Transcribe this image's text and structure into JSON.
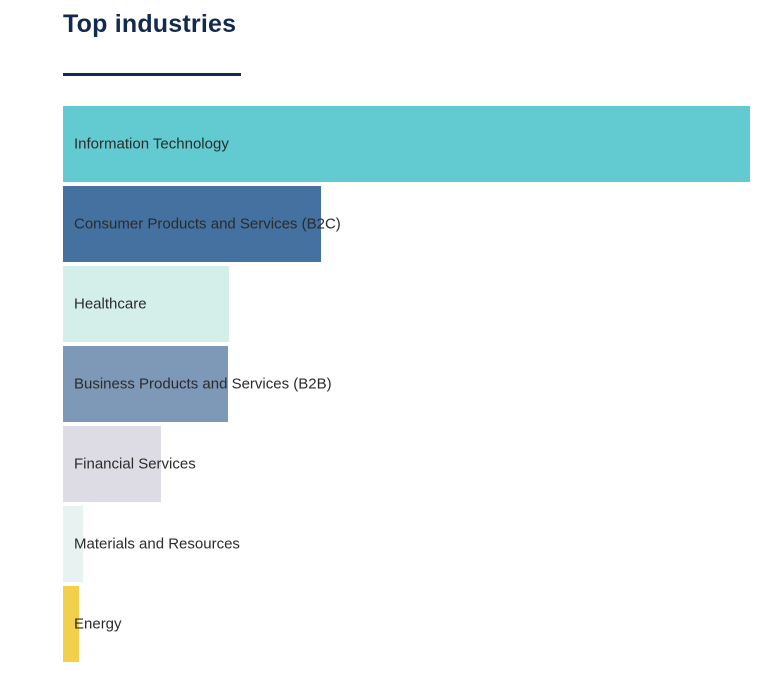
{
  "page": {
    "title": "Top industries"
  },
  "colors": {
    "title": "#14294E",
    "underline": "#14294E",
    "bar_label": "#2B2B2B",
    "background": "#FFFFFF"
  },
  "chart_data": {
    "type": "bar",
    "orientation": "horizontal",
    "title": "Top industries",
    "xlabel": "",
    "ylabel": "",
    "axes_shown": false,
    "grid": false,
    "legend": "none",
    "value_labels_shown": false,
    "categories": [
      "Information Technology",
      "Consumer Products and Services (B2C)",
      "Healthcare",
      "Business Products and Services (B2B)",
      "Financial Services",
      "Materials and Resources",
      "Energy"
    ],
    "values_pct_of_max": [
      100,
      37.6,
      24.2,
      24.0,
      14.3,
      2.9,
      2.3
    ],
    "bar_colors": [
      "#62CBD1",
      "#44719F",
      "#D4EFEA",
      "#7E99B8",
      "#DDDCE4",
      "#E8F3F1",
      "#F2D04B"
    ]
  }
}
